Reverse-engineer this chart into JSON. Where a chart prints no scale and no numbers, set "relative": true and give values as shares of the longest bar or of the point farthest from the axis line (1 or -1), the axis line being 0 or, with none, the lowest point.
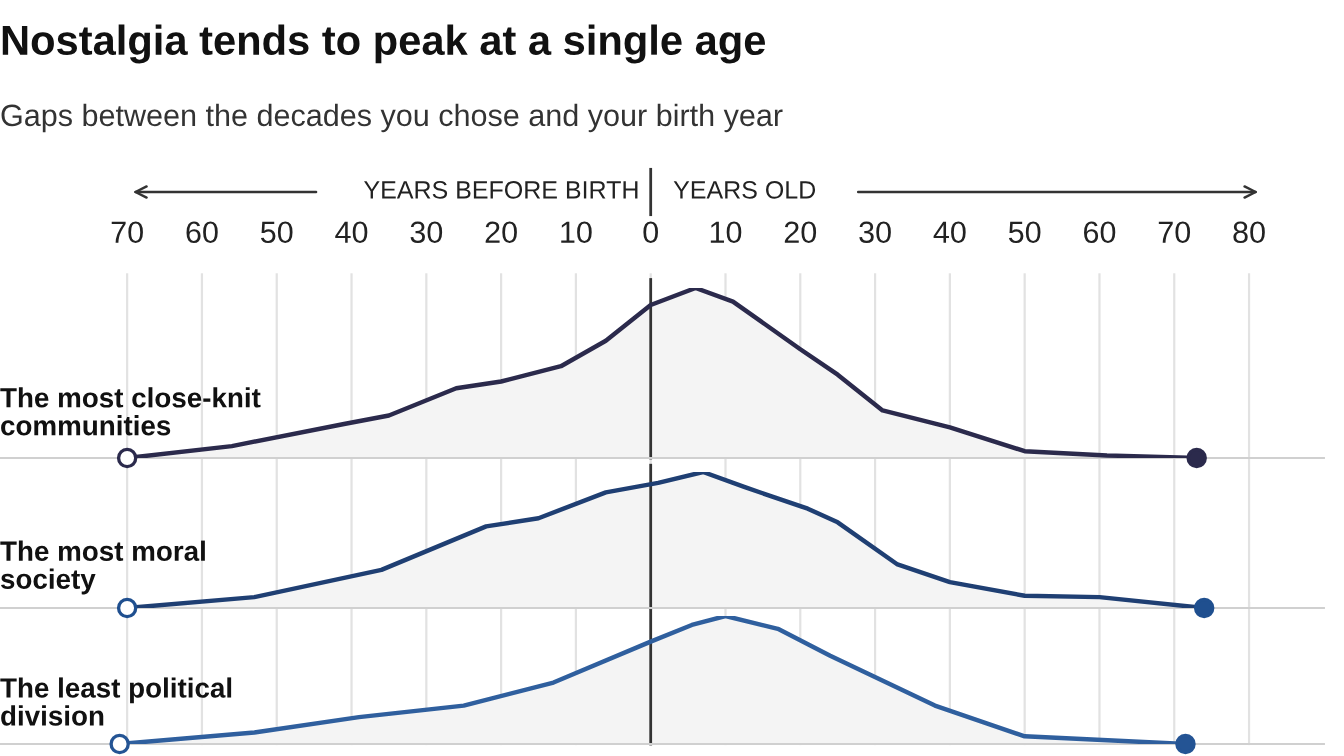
{
  "chart_data": [
    {
      "type": "area",
      "relative": true,
      "title": "Nostalgia tends to peak at a single age",
      "subtitle": "Gaps between the decades you chose and your birth year",
      "ylabel": "The most close-knit communities",
      "annotations": [
        "YEARS BEFORE BIRTH",
        "YEARS OLD"
      ],
      "xlim": [
        -87,
        90
      ],
      "xticks": [
        {
          "value": -70,
          "label": "70"
        },
        {
          "value": -60,
          "label": "60"
        },
        {
          "value": -50,
          "label": "50"
        },
        {
          "value": -40,
          "label": "40"
        },
        {
          "value": -30,
          "label": "30"
        },
        {
          "value": -20,
          "label": "20"
        },
        {
          "value": -10,
          "label": "10"
        },
        0,
        10,
        20,
        30,
        40,
        50,
        60,
        70,
        80
      ],
      "grid": "x",
      "tick_labels": "x",
      "ref_lines": [
        {
          "axis": "x",
          "value": 0,
          "color": "#333333"
        }
      ],
      "series": [
        {
          "type": "area",
          "color": "#2b2a4c",
          "x": [
            -70,
            -56,
            -41,
            -35,
            -26,
            -20,
            -12,
            -6,
            0,
            6,
            11,
            20,
            25,
            31,
            40,
            50,
            61,
            73
          ],
          "values": [
            0,
            0.07,
            0.2,
            0.25,
            0.41,
            0.45,
            0.54,
            0.69,
            0.9,
            1.0,
            0.92,
            0.64,
            0.49,
            0.28,
            0.18,
            0.04,
            0.015,
            0
          ]
        },
        {
          "type": "scatter",
          "colors": [
            "#ffffff",
            "#2b2a4c"
          ],
          "x": [
            -70,
            73
          ],
          "values": [
            0,
            0
          ]
        }
      ]
    },
    {
      "type": "area",
      "relative": true,
      "ylabel": "The most moral society",
      "xlim": [
        -87,
        90
      ],
      "grid": "x",
      "tick_labels": false,
      "ref_lines": [
        {
          "axis": "x",
          "value": 0,
          "color": "#333333"
        }
      ],
      "series": [
        {
          "type": "area",
          "color": "#1f3f73",
          "x": [
            -70,
            -53,
            -36,
            -22,
            -15,
            -6,
            1,
            7,
            12.5,
            21,
            25,
            33,
            40,
            50,
            60,
            74
          ],
          "values": [
            0,
            0.08,
            0.28,
            0.6,
            0.66,
            0.85,
            0.92,
            1.0,
            0.89,
            0.73,
            0.63,
            0.32,
            0.19,
            0.09,
            0.08,
            0
          ]
        },
        {
          "type": "scatter",
          "colors": [
            "#ffffff",
            "#1f4f8f"
          ],
          "x": [
            -70,
            74
          ],
          "values": [
            0,
            0
          ]
        }
      ]
    },
    {
      "type": "area",
      "relative": true,
      "ylabel": "The least political division",
      "xlim": [
        -87,
        90
      ],
      "grid": "x",
      "tick_labels": false,
      "ref_lines": [
        {
          "axis": "x",
          "value": 0,
          "color": "#333333"
        }
      ],
      "series": [
        {
          "type": "area",
          "color": "#2f5f9e",
          "x": [
            -71,
            -53,
            -39,
            -25,
            -13,
            0,
            5.5,
            10,
            17,
            24,
            38,
            50,
            71.5
          ],
          "values": [
            0,
            0.09,
            0.21,
            0.3,
            0.48,
            0.8,
            0.93,
            1.0,
            0.9,
            0.69,
            0.3,
            0.06,
            0
          ]
        },
        {
          "type": "scatter",
          "colors": [
            "#ffffff",
            "#245494"
          ],
          "x": [
            -71,
            71.5
          ],
          "values": [
            0,
            0
          ]
        }
      ]
    }
  ]
}
